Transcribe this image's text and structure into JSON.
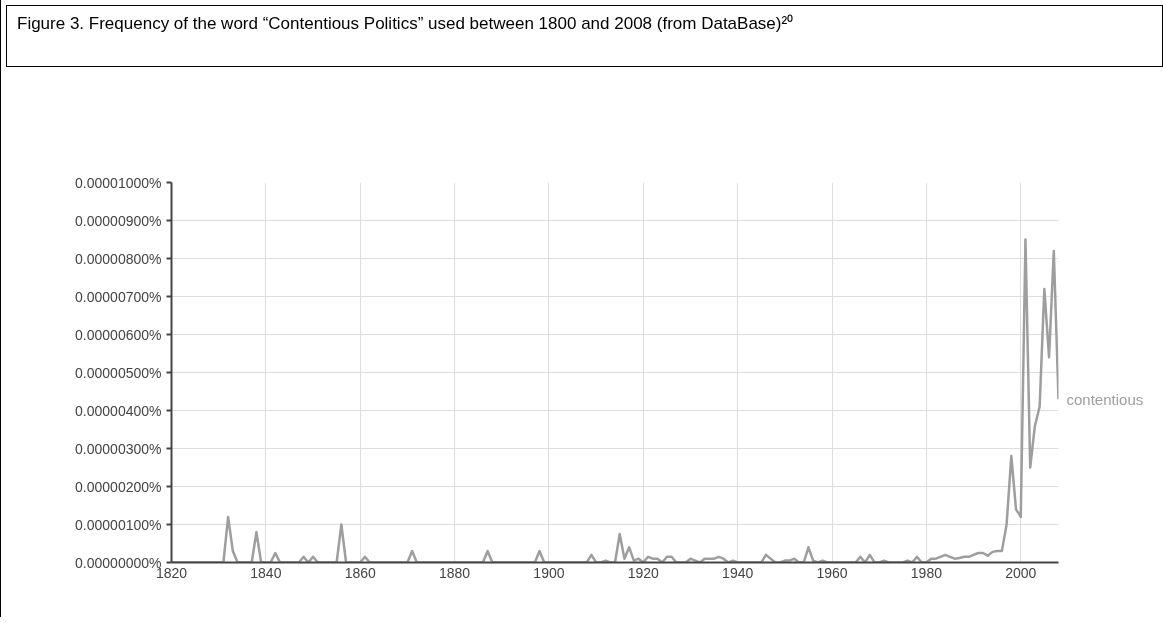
{
  "chart_data": {
    "type": "line",
    "title": "Figure 3. Frequency of the word “Contentious Politics” used between 1800 and 2008 (from DataBase)²⁰",
    "xlim": [
      1820,
      2008
    ],
    "xticks": [
      1820,
      1840,
      1860,
      1880,
      1900,
      1920,
      1940,
      1960,
      1980,
      2000
    ],
    "ylim": [
      0,
      1e-05
    ],
    "yticks": [
      {
        "value": 0,
        "label": "0.00000000%"
      },
      {
        "value": 1e-06,
        "label": "0.00000100%"
      },
      {
        "value": 2e-06,
        "label": "0.00000200%"
      },
      {
        "value": 3e-06,
        "label": "0.00000300%"
      },
      {
        "value": 4e-06,
        "label": "0.00000400%"
      },
      {
        "value": 5e-06,
        "label": "0.00000500%"
      },
      {
        "value": 6e-06,
        "label": "0.00000600%"
      },
      {
        "value": 7e-06,
        "label": "0.00000700%"
      },
      {
        "value": 8e-06,
        "label": "0.00000800%"
      },
      {
        "value": 9e-06,
        "label": "0.00000900%"
      },
      {
        "value": 1e-05,
        "label": "0.00001000%"
      }
    ],
    "grid": true,
    "marker": "none",
    "line_style": "solid",
    "series": [
      {
        "name": "contentious",
        "color": "#9e9e9e",
        "x": [
          1820,
          1831,
          1832,
          1833,
          1834,
          1837,
          1838,
          1839,
          1841,
          1842,
          1843,
          1847,
          1848,
          1849,
          1850,
          1851,
          1855,
          1856,
          1857,
          1860,
          1861,
          1862,
          1870,
          1871,
          1872,
          1886,
          1887,
          1888,
          1897,
          1898,
          1899,
          1908,
          1909,
          1910,
          1911,
          1912,
          1913,
          1914,
          1915,
          1916,
          1917,
          1918,
          1919,
          1920,
          1921,
          1922,
          1923,
          1924,
          1925,
          1926,
          1927,
          1929,
          1930,
          1931,
          1932,
          1933,
          1934,
          1935,
          1936,
          1937,
          1938,
          1939,
          1940,
          1945,
          1946,
          1947,
          1948,
          1949,
          1950,
          1951,
          1952,
          1953,
          1954,
          1955,
          1956,
          1957,
          1958,
          1959,
          1965,
          1966,
          1967,
          1968,
          1969,
          1970,
          1971,
          1972,
          1975,
          1976,
          1977,
          1978,
          1979,
          1980,
          1981,
          1982,
          1983,
          1984,
          1985,
          1986,
          1987,
          1988,
          1989,
          1990,
          1991,
          1992,
          1993,
          1994,
          1995,
          1996,
          1997,
          1998,
          1999,
          2000,
          2001,
          2002,
          2003,
          2004,
          2005,
          2006,
          2007,
          2008
        ],
        "values": [
          0,
          0,
          1.2e-06,
          3e-07,
          0,
          0,
          8e-07,
          0,
          0,
          2.5e-07,
          0,
          0,
          1.5e-07,
          0,
          1.5e-07,
          0,
          0,
          1e-06,
          0,
          0,
          1.5e-07,
          0,
          0,
          3e-07,
          0,
          0,
          3e-07,
          0,
          0,
          3e-07,
          0,
          0,
          2e-07,
          0,
          0,
          5e-08,
          0,
          0,
          7.5e-07,
          1e-07,
          4e-07,
          5e-08,
          1e-07,
          0,
          1.5e-07,
          1e-07,
          1e-07,
          0,
          1.5e-07,
          1.5e-07,
          0,
          0,
          1e-07,
          5e-08,
          0,
          1e-07,
          1e-07,
          1e-07,
          1.5e-07,
          1e-07,
          0,
          5e-08,
          0,
          0,
          2e-07,
          1e-07,
          0,
          0,
          5e-08,
          5e-08,
          1e-07,
          0,
          0,
          4e-07,
          5e-08,
          0,
          5e-08,
          0,
          0,
          1.5e-07,
          0,
          2e-07,
          0,
          0,
          5e-08,
          0,
          0,
          5e-08,
          0,
          1.5e-07,
          0,
          0,
          1e-07,
          1e-07,
          1.5e-07,
          2e-07,
          1.5e-07,
          1e-07,
          1.2e-07,
          1.5e-07,
          1.5e-07,
          2e-07,
          2.5e-07,
          2.5e-07,
          1.8e-07,
          2.8e-07,
          3e-07,
          3e-07,
          1e-06,
          2.8e-06,
          1.4e-06,
          1.2e-06,
          8.5e-06,
          2.5e-06,
          3.6e-06,
          4.1e-06,
          7.2e-06,
          5.4e-06,
          8.2e-06,
          4.3e-06
        ]
      }
    ]
  }
}
